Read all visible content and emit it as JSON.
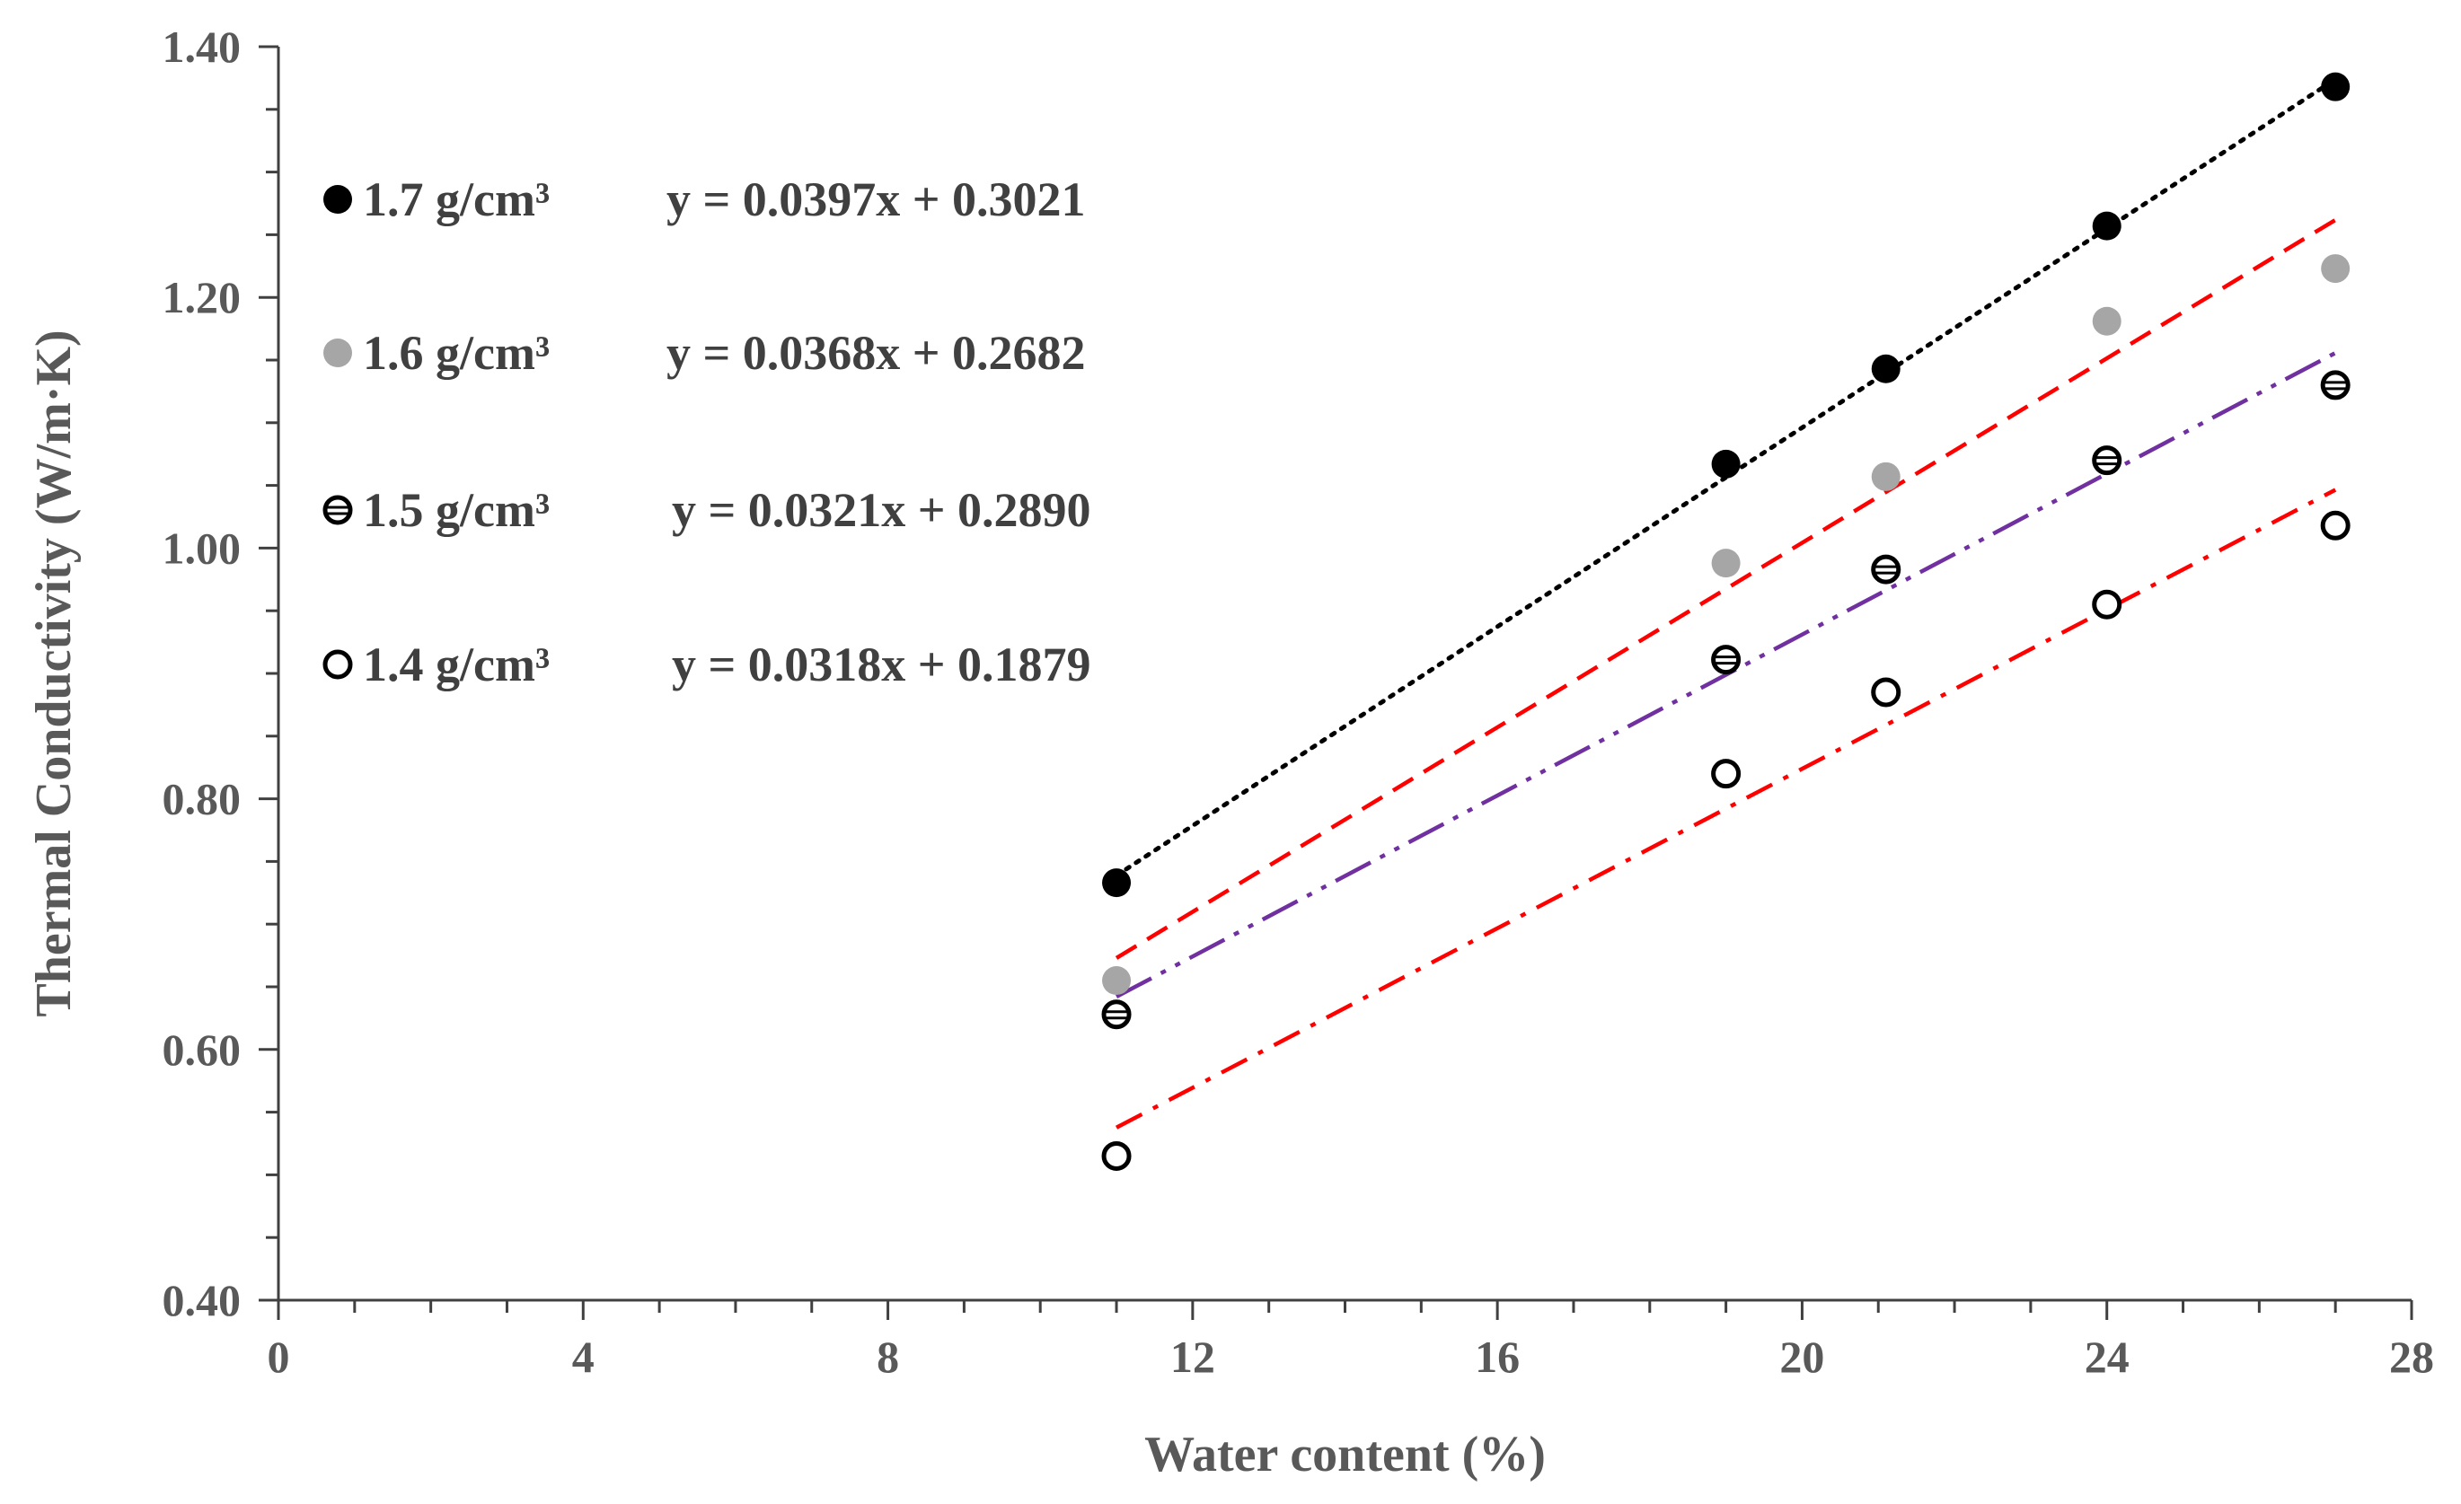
{
  "chart_data": {
    "type": "scatter",
    "xlabel": "Water content (%)",
    "ylabel": "Thermal Conductivity (W/m·K)",
    "xlim": [
      0,
      28
    ],
    "ylim": [
      0.4,
      1.4
    ],
    "x_ticks": [
      "0",
      "4",
      "8",
      "12",
      "16",
      "20",
      "24",
      "28"
    ],
    "y_ticks": [
      "0.40",
      "0.60",
      "0.80",
      "1.00",
      "1.20",
      "1.40"
    ],
    "x_tick_values": [
      0,
      4,
      8,
      12,
      16,
      20,
      24,
      28
    ],
    "y_tick_values": [
      0.4,
      0.6,
      0.8,
      1.0,
      1.2,
      1.4
    ],
    "x_minor_step": 1,
    "y_minor_step": 0.05,
    "x": [
      11,
      19,
      21.1,
      24,
      27
    ],
    "series": [
      {
        "name": "1.7 g/cm³",
        "equation": "y = 0.0397x + 0.3021",
        "values": [
          0.733,
          1.067,
          1.143,
          1.257,
          1.368
        ],
        "marker": "filled-black",
        "trendline": {
          "slope": 0.0397,
          "intercept": 0.3021,
          "style": "dotted",
          "color": "#000000"
        }
      },
      {
        "name": "1.6 g/cm³",
        "equation": "y = 0.0368x + 0.2682",
        "values": [
          0.655,
          0.988,
          1.057,
          1.181,
          1.223
        ],
        "marker": "filled-gray",
        "trendline": {
          "slope": 0.0368,
          "intercept": 0.2682,
          "style": "dashed",
          "color": "#ff0000"
        }
      },
      {
        "name": "1.5 g/cm³",
        "equation": "y = 0.0321x + 0.2890",
        "values": [
          0.628,
          0.911,
          0.983,
          1.07,
          1.13
        ],
        "marker": "hollow-lined",
        "trendline": {
          "slope": 0.0321,
          "intercept": 0.289,
          "style": "long-dash-dot-dot",
          "color": "#7030a0"
        }
      },
      {
        "name": "1.4 g/cm³",
        "equation": "y = 0.0318x + 0.1879",
        "values": [
          0.515,
          0.82,
          0.885,
          0.955,
          1.018
        ],
        "marker": "hollow",
        "trendline": {
          "slope": 0.0318,
          "intercept": 0.1879,
          "style": "dash-dot",
          "color": "#ff0000"
        }
      }
    ],
    "trend_x_range": [
      11,
      27
    ],
    "legend_position": "top-left"
  }
}
